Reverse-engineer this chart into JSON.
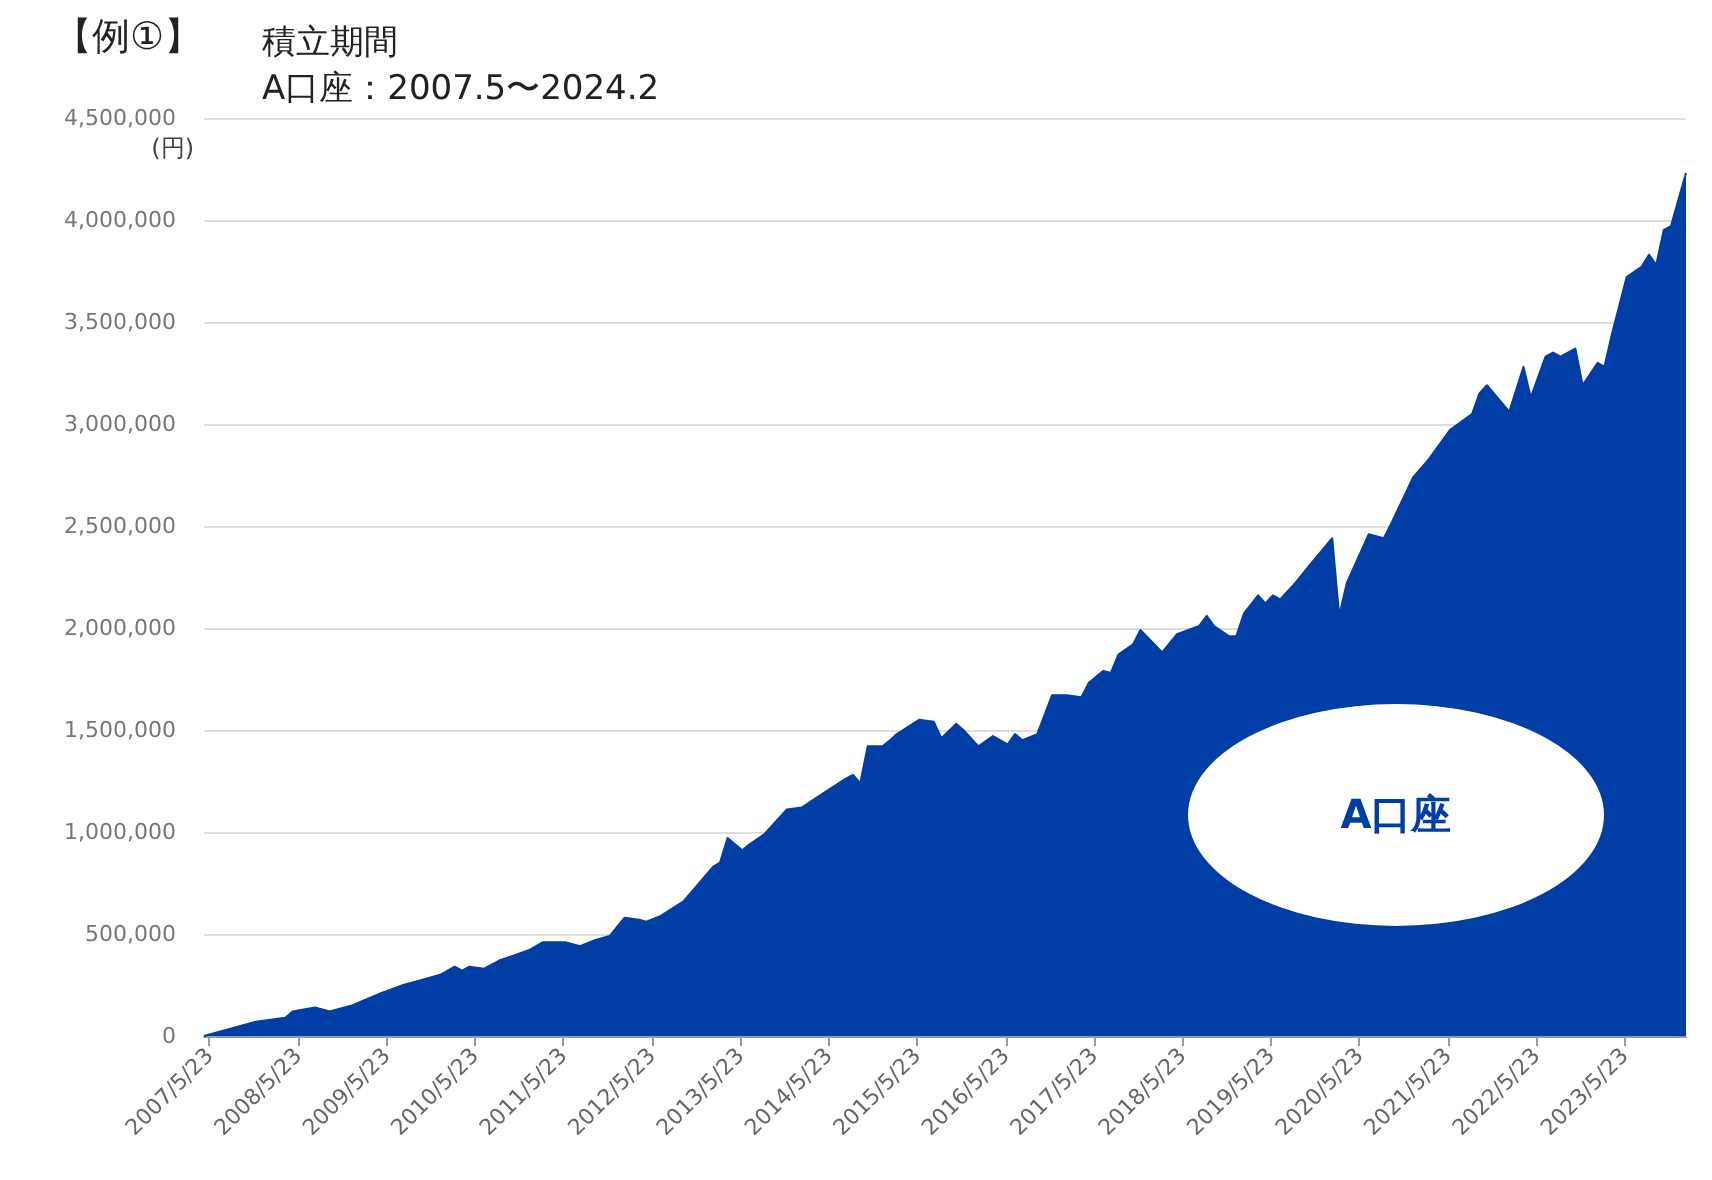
{
  "chart_data": {
    "type": "area",
    "title": "【例①】",
    "subtitle": "積立期間\nA口座：2007.5〜2024.2",
    "ylabel": "(円)",
    "x": [
      "2007-05",
      "2007-12",
      "2008-04",
      "2008-05",
      "2008-08",
      "2008-10",
      "2008-12",
      "2009-01",
      "2009-05",
      "2009-08",
      "2009-10",
      "2010-01",
      "2010-03",
      "2010-04",
      "2010-05",
      "2010-07",
      "2010-09",
      "2011-01",
      "2011-03",
      "2011-06",
      "2011-08",
      "2011-10",
      "2011-12",
      "2012-02",
      "2012-04",
      "2012-05",
      "2012-07",
      "2012-10",
      "2013-02",
      "2013-03",
      "2013-04",
      "2013-06",
      "2013-07",
      "2013-09",
      "2013-12",
      "2014-02",
      "2014-05",
      "2014-08",
      "2014-09",
      "2014-10",
      "2014-11",
      "2015-01",
      "2015-02",
      "2015-03",
      "2015-06",
      "2015-08",
      "2015-09",
      "2015-11",
      "2015-12",
      "2016-02",
      "2016-04",
      "2016-06",
      "2016-07",
      "2016-08",
      "2016-10",
      "2016-12",
      "2017-02",
      "2017-04",
      "2017-05",
      "2017-07",
      "2017-08",
      "2017-09",
      "2017-11",
      "2017-12",
      "2018-03",
      "2018-05",
      "2018-08",
      "2018-09",
      "2018-10",
      "2018-12",
      "2019-01",
      "2019-02",
      "2019-04",
      "2019-05",
      "2019-06",
      "2019-07",
      "2019-09",
      "2019-11",
      "2020-02",
      "2020-03",
      "2020-04",
      "2020-07",
      "2020-09",
      "2020-10",
      "2021-01",
      "2021-03",
      "2021-06",
      "2021-09",
      "2021-10",
      "2021-11",
      "2022-02",
      "2022-04",
      "2022-05",
      "2022-07",
      "2022-08",
      "2022-09",
      "2022-11",
      "2022-12",
      "2023-02",
      "2023-03",
      "2023-04",
      "2023-06",
      "2023-08",
      "2023-09",
      "2023-10",
      "2023-11",
      "2023-12",
      "2024-02"
    ],
    "series": [
      {
        "name": "A口座",
        "color": "#003da5",
        "values": [
          0,
          70000,
          90000,
          120000,
          140000,
          120000,
          140000,
          150000,
          210000,
          250000,
          270000,
          300000,
          340000,
          320000,
          340000,
          330000,
          370000,
          420000,
          460000,
          460000,
          440000,
          470000,
          490000,
          580000,
          570000,
          560000,
          590000,
          660000,
          830000,
          850000,
          970000,
          910000,
          940000,
          990000,
          1110000,
          1120000,
          1190000,
          1260000,
          1280000,
          1240000,
          1420000,
          1420000,
          1450000,
          1480000,
          1550000,
          1540000,
          1460000,
          1530000,
          1500000,
          1420000,
          1470000,
          1430000,
          1480000,
          1450000,
          1480000,
          1670000,
          1670000,
          1660000,
          1730000,
          1790000,
          1780000,
          1870000,
          1920000,
          1990000,
          1880000,
          1970000,
          2010000,
          2060000,
          2010000,
          1960000,
          1960000,
          2070000,
          2160000,
          2120000,
          2160000,
          2140000,
          2220000,
          2310000,
          2440000,
          2060000,
          2220000,
          2460000,
          2440000,
          2510000,
          2740000,
          2820000,
          2970000,
          3050000,
          3150000,
          3190000,
          3060000,
          3280000,
          3130000,
          3330000,
          3350000,
          3330000,
          3370000,
          3190000,
          3300000,
          3280000,
          3440000,
          3720000,
          3770000,
          3830000,
          3780000,
          3950000,
          3970000,
          4230000
        ]
      }
    ],
    "xlim": [
      "2007-05",
      "2024-02"
    ],
    "xticks": [
      {
        "value": "2007-05-23",
        "label": "2007/5/23"
      },
      {
        "value": "2008-05-23",
        "label": "2008/5/23"
      },
      {
        "value": "2009-05-23",
        "label": "2009/5/23"
      },
      {
        "value": "2010-05-23",
        "label": "2010/5/23"
      },
      {
        "value": "2011-05-23",
        "label": "2011/5/23"
      },
      {
        "value": "2012-05-23",
        "label": "2012/5/23"
      },
      {
        "value": "2013-05-23",
        "label": "2013/5/23"
      },
      {
        "value": "2014-05-23",
        "label": "2014/5/23"
      },
      {
        "value": "2015-05-23",
        "label": "2015/5/23"
      },
      {
        "value": "2016-05-23",
        "label": "2016/5/23"
      },
      {
        "value": "2017-05-23",
        "label": "2017/5/23"
      },
      {
        "value": "2018-05-23",
        "label": "2018/5/23"
      },
      {
        "value": "2019-05-23",
        "label": "2019/5/23"
      },
      {
        "value": "2020-05-23",
        "label": "2020/5/23"
      },
      {
        "value": "2021-05-23",
        "label": "2021/5/23"
      },
      {
        "value": "2022-05-23",
        "label": "2022/5/23"
      },
      {
        "value": "2023-05-23",
        "label": "2023/5/23"
      }
    ],
    "ylim": [
      0,
      4500000
    ],
    "yticks": [
      0,
      {
        "value": 500000,
        "label": "500,000"
      },
      {
        "value": 1000000,
        "label": "1,000,000"
      },
      {
        "value": 1500000,
        "label": "1,500,000"
      },
      {
        "value": 2000000,
        "label": "2,000,000"
      },
      {
        "value": 2500000,
        "label": "2,500,000"
      },
      {
        "value": 3000000,
        "label": "3,000,000"
      },
      {
        "value": 3500000,
        "label": "3,500,000"
      },
      {
        "value": 4000000,
        "label": "4,000,000"
      },
      {
        "value": 4500000,
        "label": "4,500,000"
      }
    ],
    "grid": "y",
    "legend": false
  }
}
